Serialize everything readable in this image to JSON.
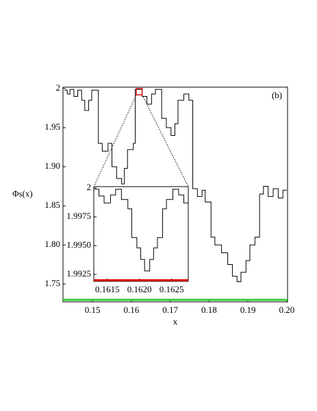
{
  "chart_data": [
    {
      "type": "line",
      "y_label": "Φs(x)",
      "x_label": "x",
      "annotation": "(b)",
      "xlim": [
        0.1424,
        0.2002
      ],
      "ylim": [
        1.7272,
        2.0018
      ],
      "xticks": [
        0.15,
        0.16,
        0.17,
        0.18,
        0.19,
        {
          "value": 0.2,
          "label": "0.20"
        }
      ],
      "yticks": [
        {
          "value": 1.75,
          "label": "1.75"
        },
        {
          "value": 1.8,
          "label": "1.80"
        },
        1.85,
        {
          "value": 1.9,
          "label": "1.90"
        },
        1.95,
        2
      ],
      "hlines": [
        {
          "y": 1.7298,
          "color": "#33cc33"
        }
      ],
      "x": [
        0.1428,
        0.1435,
        0.1435,
        0.1442,
        0.1442,
        0.1452,
        0.1452,
        0.1462,
        0.1462,
        0.1472,
        0.1472,
        0.148,
        0.148,
        0.149,
        0.149,
        0.1498,
        0.1498,
        0.1515,
        0.1515,
        0.1525,
        0.1525,
        0.154,
        0.154,
        0.155,
        0.155,
        0.1562,
        0.1562,
        0.1575,
        0.1575,
        0.1582,
        0.1582,
        0.159,
        0.159,
        0.1605,
        0.1605,
        0.161,
        0.161,
        0.1628,
        0.1628,
        0.164,
        0.164,
        0.1652,
        0.1652,
        0.1662,
        0.1662,
        0.1678,
        0.1678,
        0.169,
        0.169,
        0.1702,
        0.1702,
        0.1712,
        0.1712,
        0.172,
        0.172,
        0.1735,
        0.1735,
        0.1748,
        0.1748,
        0.1758,
        0.1758,
        0.177,
        0.177,
        0.1782,
        0.1782,
        0.179,
        0.179,
        0.1805,
        0.1805,
        0.1815,
        0.1815,
        0.1832,
        0.1832,
        0.1848,
        0.1848,
        0.186,
        0.186,
        0.1872,
        0.1872,
        0.1882,
        0.1882,
        0.1895,
        0.1895,
        0.1905,
        0.1905,
        0.1918,
        0.1918,
        0.193,
        0.193,
        0.194,
        0.194,
        0.1952,
        0.1952,
        0.1965,
        0.1965,
        0.1978,
        0.1978,
        0.199,
        0.199,
        0.2
      ],
      "series": [
        {
          "color": "#000000",
          "values": [
            1.998,
            1.998,
            1.993,
            1.993,
            1.999,
            1.999,
            1.99,
            1.99,
            1.998,
            1.998,
            1.985,
            1.985,
            1.972,
            1.972,
            1.985,
            1.985,
            1.998,
            1.998,
            1.93,
            1.93,
            1.92,
            1.92,
            1.93,
            1.93,
            1.9,
            1.9,
            1.885,
            1.885,
            1.878,
            1.878,
            1.898,
            1.898,
            1.922,
            1.922,
            1.93,
            1.93,
            1.999,
            1.999,
            1.99,
            1.99,
            1.98,
            1.98,
            1.993,
            1.993,
            1.999,
            1.999,
            1.962,
            1.962,
            1.95,
            1.95,
            1.94,
            1.94,
            1.955,
            1.955,
            1.985,
            1.985,
            1.993,
            1.993,
            1.985,
            1.985,
            1.872,
            1.872,
            1.862,
            1.862,
            1.87,
            1.87,
            1.855,
            1.855,
            1.81,
            1.81,
            1.8,
            1.8,
            1.79,
            1.79,
            1.775,
            1.775,
            1.76,
            1.76,
            1.753,
            1.753,
            1.765,
            1.765,
            1.78,
            1.78,
            1.8,
            1.8,
            1.81,
            1.81,
            1.865,
            1.865,
            1.875,
            1.875,
            1.862,
            1.862,
            1.872,
            1.872,
            1.86,
            1.86,
            1.87,
            1.87
          ]
        }
      ]
    },
    {
      "type": "line",
      "box_color": "#dd1111",
      "xlim": [
        0.16129,
        0.16276
      ],
      "ylim": [
        1.9919,
        2.00012
      ],
      "xticks": [
        0.1615,
        {
          "value": 0.162,
          "label": "0.1620"
        },
        0.1625
      ],
      "yticks": [
        1.9925,
        {
          "value": 1.995,
          "label": "1.9950"
        },
        1.9975,
        2
      ],
      "hlines": [
        {
          "y": 1.992,
          "color": "#dd1111"
        }
      ],
      "x": [
        0.1613,
        0.16137,
        0.16137,
        0.16145,
        0.16145,
        0.16155,
        0.16155,
        0.16163,
        0.16163,
        0.16172,
        0.16172,
        0.16182,
        0.16182,
        0.16188,
        0.16188,
        0.16196,
        0.16196,
        0.16202,
        0.16202,
        0.16208,
        0.16208,
        0.16216,
        0.16216,
        0.16222,
        0.16222,
        0.16228,
        0.16228,
        0.16236,
        0.16236,
        0.16242,
        0.16242,
        0.16252,
        0.16252,
        0.16261,
        0.16261,
        0.16269,
        0.16269,
        0.16276
      ],
      "series": [
        {
          "color": "#000000",
          "values": [
            1.9999,
            1.9999,
            1.9993,
            1.9993,
            1.9987,
            1.9987,
            1.9994,
            1.9994,
            1.9999,
            1.9999,
            1.999,
            1.999,
            1.9982,
            1.9982,
            1.9957,
            1.9957,
            1.9948,
            1.9948,
            1.9938,
            1.9938,
            1.9928,
            1.9928,
            1.9938,
            1.9938,
            1.9948,
            1.9948,
            1.9957,
            1.9957,
            1.9982,
            1.9982,
            1.999,
            1.999,
            1.9999,
            1.9999,
            1.9994,
            1.9994,
            1.9987,
            1.9987
          ]
        }
      ]
    }
  ]
}
